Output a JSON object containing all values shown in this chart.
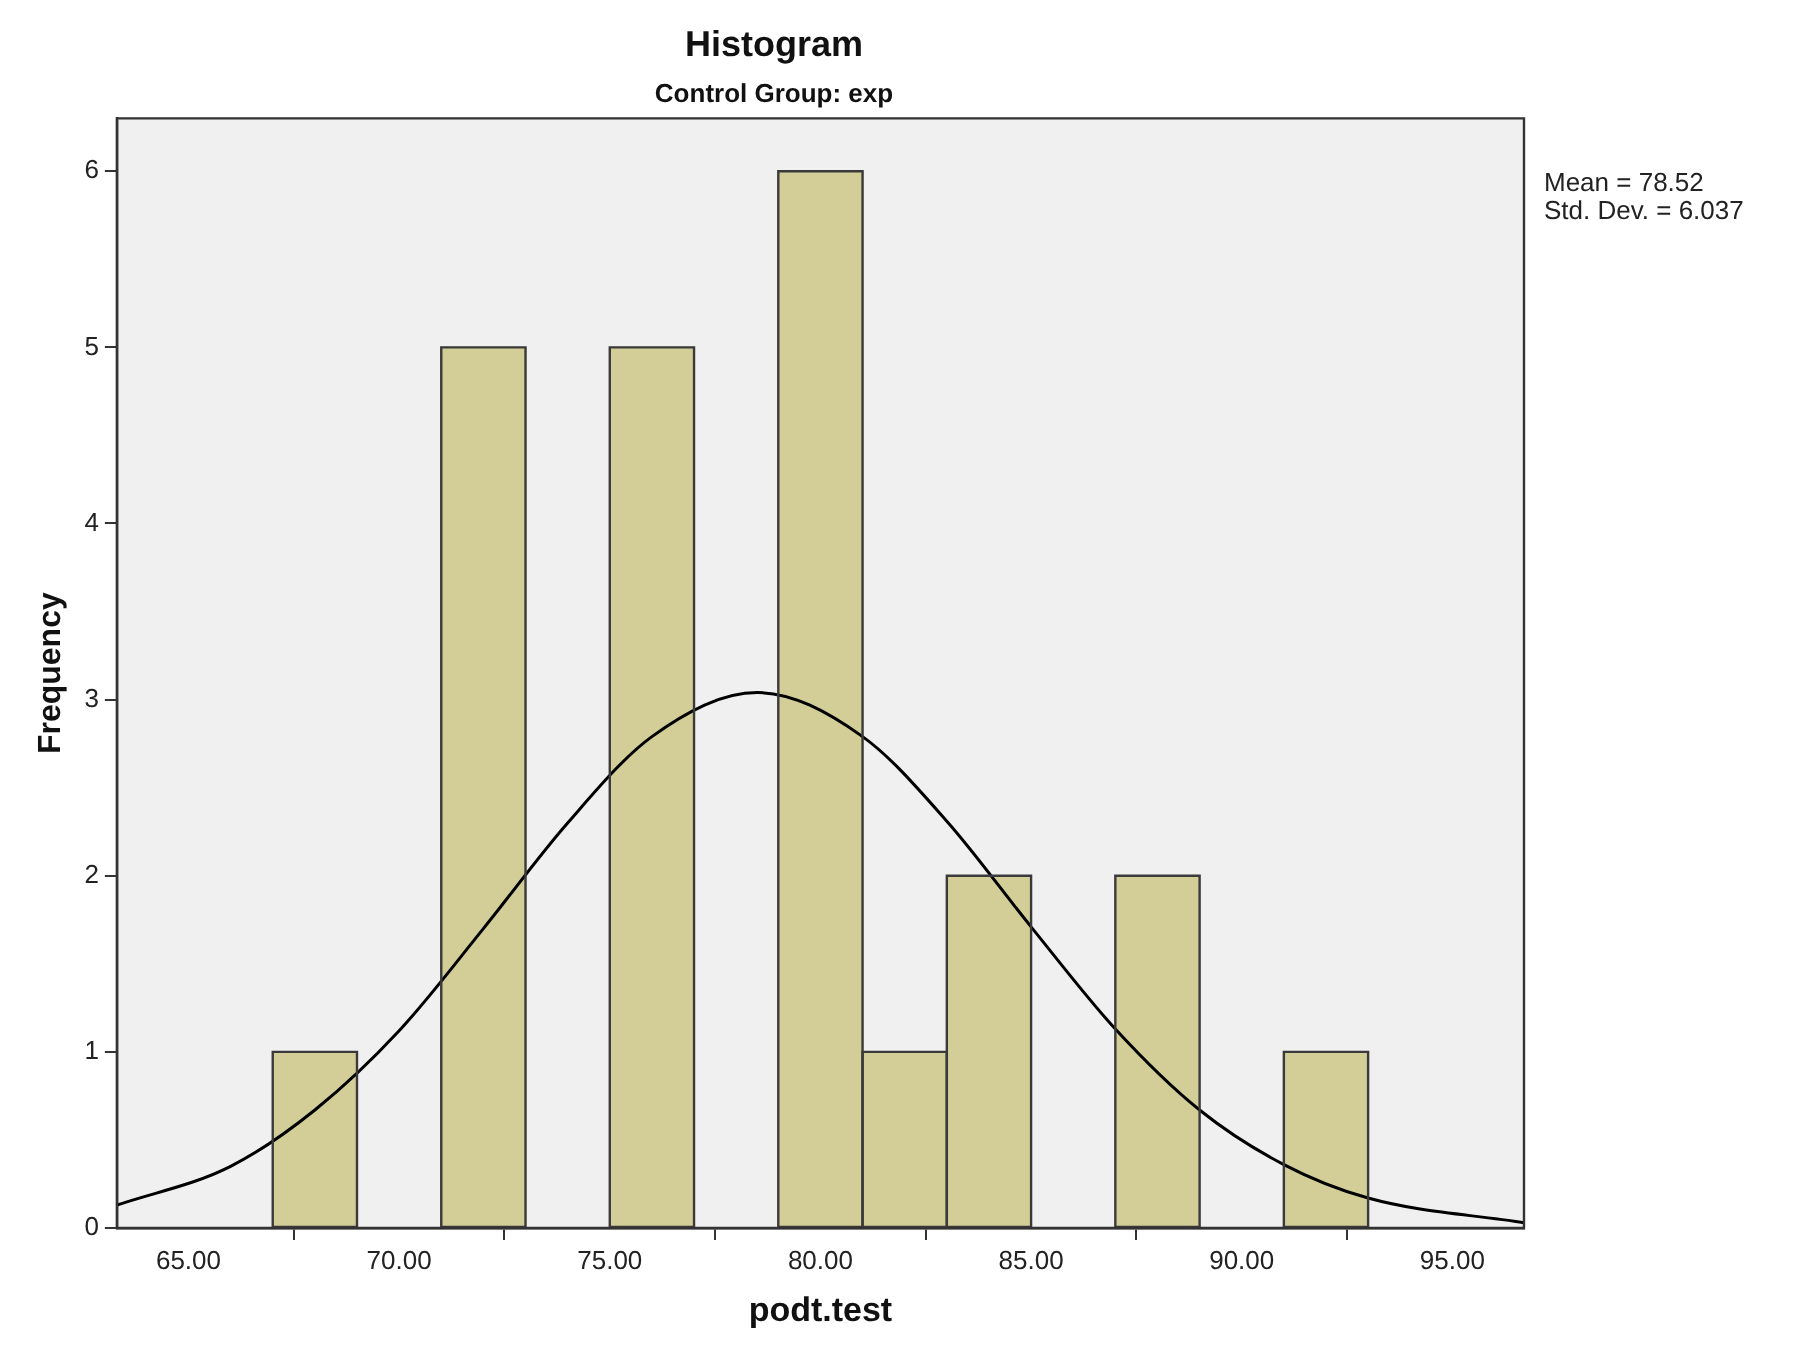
{
  "chart_data": {
    "type": "histogram",
    "title": "Histogram",
    "subtitle": "Control Group: exp",
    "xlabel": "podt.test",
    "ylabel": "Frequency",
    "bins": [
      67,
      69,
      71,
      73,
      75,
      77,
      79,
      81,
      83,
      85,
      87,
      89,
      91,
      93
    ],
    "values": [
      1,
      0,
      5,
      0,
      5,
      0,
      6,
      1,
      2,
      0,
      2,
      0,
      1
    ],
    "color": "#d3ce97",
    "series": [
      {
        "type": "line",
        "color": "#000000",
        "x": [
          63.3,
          66,
          68,
          70,
          72,
          74,
          76,
          78.5,
          81,
          83,
          85,
          87,
          89,
          91,
          93,
          96.7
        ],
        "values": [
          0.13,
          0.35,
          0.67,
          1.12,
          1.7,
          2.3,
          2.79,
          3.04,
          2.79,
          2.31,
          1.71,
          1.13,
          0.67,
          0.36,
          0.17,
          0.03
        ]
      }
    ],
    "xlim": [
      63.3,
      96.7
    ],
    "xticks": [
      {
        "value": 65,
        "label": "65.00"
      },
      {
        "value": 70,
        "label": "70.00"
      },
      {
        "value": 75,
        "label": "75.00"
      },
      {
        "value": 80,
        "label": "80.00"
      },
      {
        "value": 85,
        "label": "85.00"
      },
      {
        "value": 90,
        "label": "90.00"
      },
      {
        "value": 95,
        "label": "95.00"
      }
    ],
    "ylim": [
      0,
      6.3
    ],
    "yticks": [
      0,
      1,
      2,
      3,
      4,
      5,
      6
    ],
    "annotations": [
      "Mean = 78.52",
      "Std. Dev. = 6.037"
    ],
    "grid": false,
    "legend": false,
    "marker": "none"
  }
}
